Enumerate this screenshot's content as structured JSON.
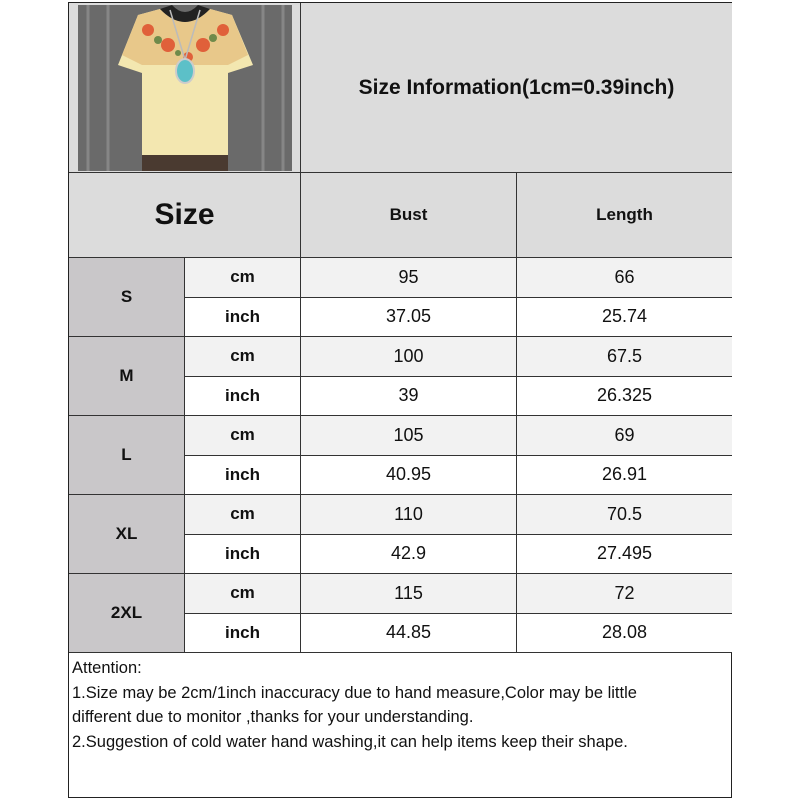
{
  "title": "Size Information(1cm=0.39inch)",
  "product_image": {
    "description_icon": "blouse-photo",
    "colors": {
      "fabric": "#f3e7b0",
      "embroidery": "#e0603a",
      "background": "#6a6a6a"
    }
  },
  "header": {
    "size": "Size",
    "bust": "Bust",
    "length": "Length"
  },
  "rows": [
    {
      "size": "S",
      "cm_label": "cm",
      "inch_label": "inch",
      "bust_cm": "95",
      "length_cm": "66",
      "bust_inch": "37.05",
      "length_inch": "25.74"
    },
    {
      "size": "M",
      "cm_label": "cm",
      "inch_label": "inch",
      "bust_cm": "100",
      "length_cm": "67.5",
      "bust_inch": "39",
      "length_inch": "26.325"
    },
    {
      "size": "L",
      "cm_label": "cm",
      "inch_label": "inch",
      "bust_cm": "105",
      "length_cm": "69",
      "bust_inch": "40.95",
      "length_inch": "26.91"
    },
    {
      "size": "XL",
      "cm_label": "cm",
      "inch_label": "inch",
      "bust_cm": "110",
      "length_cm": "70.5",
      "bust_inch": "42.9",
      "length_inch": "27.495"
    },
    {
      "size": "2XL",
      "cm_label": "cm",
      "inch_label": "inch",
      "bust_cm": "115",
      "length_cm": "72",
      "bust_inch": "44.85",
      "length_inch": "28.08"
    }
  ],
  "attention": {
    "heading": "Attention:",
    "lines": [
      "1.Size may be 2cm/1inch inaccuracy due to hand measure,Color may be little",
      "different due to monitor ,thanks for your understanding.",
      "2.Suggestion of cold water hand washing,it can help items keep their shape."
    ]
  }
}
